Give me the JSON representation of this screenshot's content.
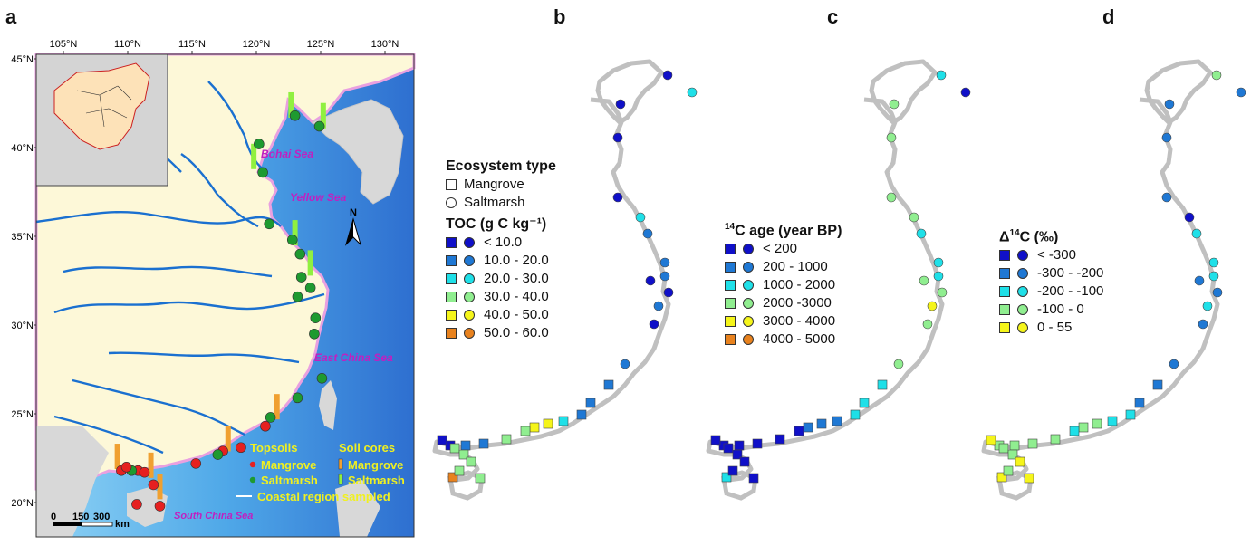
{
  "panels": {
    "a": "a",
    "b": "b",
    "c": "c",
    "d": "d"
  },
  "colors": {
    "c1": "#1010c8",
    "c2": "#1f78d4",
    "c3": "#1fe0e8",
    "c4": "#90ee90",
    "c5": "#f5f51a",
    "c6": "#e8821e",
    "sea_shallow": "#7ec8f0",
    "sea_deep": "#3a7fd6",
    "land": "#fdf8d8",
    "coast": "#c0c0c0",
    "river": "#1a70d0",
    "mangrove": "#e62020",
    "saltmarsh": "#1e9a30",
    "core_mangrove": "#f0a030",
    "core_saltmarsh": "#90f040",
    "sea_label": "#c020c0"
  },
  "map_a": {
    "lon_labels": [
      "105°N",
      "110°N",
      "115°N",
      "120°N",
      "125°N",
      "130°N"
    ],
    "lat_labels": [
      "45°N",
      "40°N",
      "35°N",
      "30°N",
      "25°N",
      "20°N"
    ],
    "seas": {
      "bohai": "Bohai Sea",
      "yellow": "Yellow Sea",
      "east": "East China Sea",
      "south": "South China Sea"
    },
    "north": "N",
    "scale": {
      "zero": "0",
      "mid": "150",
      "end": "300",
      "unit": "km"
    },
    "legend": {
      "topsoils": "Topsoils",
      "soil_cores": "Soil cores",
      "mangrove": "Mangrove",
      "saltmarsh": "Saltmarsh",
      "coastal": "Coastal region sampled",
      "mangrove2": "Mangrove",
      "saltmarsh2": "Saltmarsh"
    },
    "topsoil_sites": [
      {
        "type": "saltmarsh",
        "lon": 123.0,
        "lat": 41.8
      },
      {
        "type": "saltmarsh",
        "lon": 124.9,
        "lat": 41.2
      },
      {
        "type": "saltmarsh",
        "lon": 120.2,
        "lat": 40.2
      },
      {
        "type": "saltmarsh",
        "lon": 120.5,
        "lat": 38.6
      },
      {
        "type": "saltmarsh",
        "lon": 121.0,
        "lat": 35.7
      },
      {
        "type": "saltmarsh",
        "lon": 122.8,
        "lat": 34.8
      },
      {
        "type": "saltmarsh",
        "lon": 123.4,
        "lat": 34.0
      },
      {
        "type": "saltmarsh",
        "lon": 123.5,
        "lat": 32.7
      },
      {
        "type": "saltmarsh",
        "lon": 124.2,
        "lat": 32.1
      },
      {
        "type": "saltmarsh",
        "lon": 123.2,
        "lat": 31.6
      },
      {
        "type": "saltmarsh",
        "lon": 124.6,
        "lat": 30.4
      },
      {
        "type": "saltmarsh",
        "lon": 124.5,
        "lat": 29.5
      },
      {
        "type": "saltmarsh",
        "lon": 125.1,
        "lat": 27.0
      },
      {
        "type": "saltmarsh",
        "lon": 123.2,
        "lat": 25.9
      },
      {
        "type": "saltmarsh",
        "lon": 121.1,
        "lat": 24.8
      },
      {
        "type": "mangrove",
        "lon": 120.7,
        "lat": 24.3
      },
      {
        "type": "mangrove",
        "lon": 118.8,
        "lat": 23.1
      },
      {
        "type": "mangrove",
        "lon": 117.4,
        "lat": 22.9
      },
      {
        "type": "saltmarsh",
        "lon": 117.0,
        "lat": 22.7
      },
      {
        "type": "mangrove",
        "lon": 115.3,
        "lat": 22.2
      },
      {
        "type": "mangrove",
        "lon": 110.8,
        "lat": 21.8
      },
      {
        "type": "saltmarsh",
        "lon": 110.3,
        "lat": 21.8
      },
      {
        "type": "mangrove",
        "lon": 109.5,
        "lat": 21.8
      },
      {
        "type": "mangrove",
        "lon": 109.9,
        "lat": 22.0
      },
      {
        "type": "mangrove",
        "lon": 111.3,
        "lat": 21.7
      },
      {
        "type": "mangrove",
        "lon": 112.0,
        "lat": 21.0
      },
      {
        "type": "mangrove",
        "lon": 110.7,
        "lat": 19.9
      },
      {
        "type": "mangrove",
        "lon": 112.5,
        "lat": 19.8
      }
    ],
    "core_sites": [
      {
        "type": "saltmarsh",
        "lon": 122.7,
        "lat": 42.4
      },
      {
        "type": "saltmarsh",
        "lon": 125.2,
        "lat": 41.8
      },
      {
        "type": "saltmarsh",
        "lon": 119.8,
        "lat": 39.5
      },
      {
        "type": "saltmarsh",
        "lon": 123.0,
        "lat": 35.2
      },
      {
        "type": "saltmarsh",
        "lon": 124.2,
        "lat": 33.5
      },
      {
        "type": "mangrove",
        "lon": 121.6,
        "lat": 25.4
      },
      {
        "type": "mangrove",
        "lon": 117.8,
        "lat": 23.6
      },
      {
        "type": "mangrove",
        "lon": 109.2,
        "lat": 22.6
      },
      {
        "type": "mangrove",
        "lon": 111.8,
        "lat": 22.1
      },
      {
        "type": "mangrove",
        "lon": 112.5,
        "lat": 20.9
      }
    ]
  },
  "legend_b": {
    "ecosystem_title": "Ecosystem type",
    "mangrove": "Mangrove",
    "saltmarsh": "Saltmarsh",
    "toc_title": "TOC (g C kg⁻¹)",
    "classes": [
      "< 10.0",
      "10.0 - 20.0",
      "20.0 - 30.0",
      "30.0 - 40.0",
      "40.0 - 50.0",
      "50.0 - 60.0"
    ]
  },
  "legend_c": {
    "title_sup": "14",
    "title_rest": "C age (year BP)",
    "classes": [
      "< 200",
      "200 - 1000",
      "1000 - 2000",
      "2000 -3000",
      "3000 - 4000",
      "4000 - 5000"
    ]
  },
  "legend_d": {
    "title_pre": "Δ",
    "title_sup": "14",
    "title_rest": "C (‰)",
    "classes": [
      "< -300",
      "-300 - -200",
      "-200 - -100",
      "-100 - 0",
      "0 - 55"
    ]
  },
  "site_classes": {
    "b": [
      1,
      3,
      1,
      1,
      1,
      3,
      2,
      2,
      2,
      1,
      1,
      2,
      1,
      2,
      2,
      2,
      2,
      3,
      5,
      5,
      4,
      4,
      2,
      2,
      1,
      1,
      4,
      4,
      4,
      6,
      4,
      4
    ],
    "c": [
      3,
      1,
      4,
      4,
      4,
      4,
      3,
      3,
      3,
      4,
      4,
      5,
      4,
      4,
      3,
      3,
      3,
      2,
      2,
      2,
      1,
      1,
      1,
      1,
      1,
      1,
      1,
      1,
      1,
      3,
      1,
      1
    ],
    "d": [
      4,
      2,
      2,
      2,
      2,
      1,
      3,
      3,
      3,
      2,
      2,
      3,
      2,
      2,
      2,
      2,
      3,
      3,
      4,
      4,
      3,
      4,
      4,
      4,
      4,
      5,
      4,
      4,
      5,
      5,
      5,
      4
    ]
  }
}
